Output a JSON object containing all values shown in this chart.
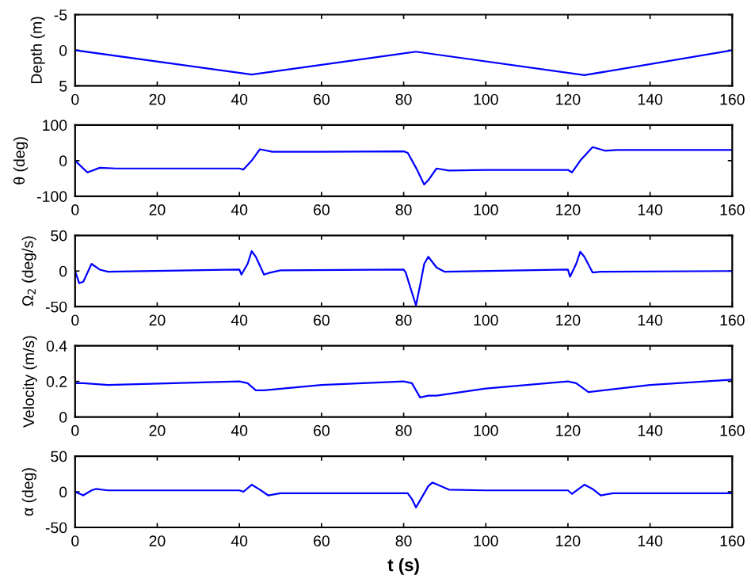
{
  "chart_data": [
    {
      "type": "line",
      "ylabel": "Depth (m)",
      "xlim": [
        0,
        160
      ],
      "xticks": [
        0,
        20,
        40,
        60,
        80,
        100,
        120,
        140,
        160
      ],
      "ylim": [
        5,
        -5
      ],
      "yticks": [
        -5,
        0,
        5
      ],
      "grid": false,
      "legend": false,
      "series": [
        {
          "color": "#0000ff",
          "x": [
            0,
            43,
            83,
            124,
            160
          ],
          "values": [
            0,
            3.4,
            0.2,
            3.5,
            0
          ]
        }
      ]
    },
    {
      "type": "line",
      "ylabel": "θ (deg)",
      "xlim": [
        0,
        160
      ],
      "xticks": [
        0,
        20,
        40,
        60,
        80,
        100,
        120,
        140,
        160
      ],
      "ylim": [
        -100,
        100
      ],
      "yticks": [
        -100,
        0,
        100
      ],
      "grid": false,
      "legend": false,
      "series": [
        {
          "color": "#0000ff",
          "x": [
            0,
            3,
            6,
            10,
            40,
            41,
            43,
            45,
            48,
            60,
            80,
            81,
            83,
            85,
            86,
            88,
            91,
            100,
            120,
            121,
            123,
            126,
            129,
            132,
            160
          ],
          "values": [
            0,
            -33,
            -20,
            -22,
            -22,
            -25,
            0,
            32,
            25,
            25,
            26,
            22,
            -20,
            -67,
            -55,
            -22,
            -28,
            -26,
            -26,
            -33,
            0,
            38,
            28,
            30,
            30
          ]
        }
      ]
    },
    {
      "type": "line",
      "ylabel": "Ω$_{2}$ (deg/s)",
      "xlim": [
        0,
        160
      ],
      "xticks": [
        0,
        20,
        40,
        60,
        80,
        100,
        120,
        140,
        160
      ],
      "ylim": [
        -50,
        50
      ],
      "yticks": [
        -50,
        0,
        50
      ],
      "grid": false,
      "legend": false,
      "series": [
        {
          "color": "#0000ff",
          "x": [
            0,
            1,
            2,
            4,
            6,
            8,
            40,
            40.5,
            42,
            43,
            44,
            46,
            47,
            50,
            80,
            80.5,
            82,
            83,
            84,
            85,
            86,
            88,
            90,
            120,
            120.5,
            122,
            123,
            124,
            126,
            128,
            160
          ],
          "values": [
            0,
            -17,
            -15,
            10,
            2,
            -1,
            2,
            -5,
            10,
            28,
            20,
            -5,
            -3,
            1,
            2,
            -2,
            -30,
            -48,
            -20,
            10,
            20,
            5,
            -1,
            2,
            -8,
            10,
            27,
            20,
            -2,
            -1,
            0
          ]
        }
      ]
    },
    {
      "type": "line",
      "ylabel": "Velocity (m/s)",
      "xlim": [
        0,
        160
      ],
      "xticks": [
        0,
        20,
        40,
        60,
        80,
        100,
        120,
        140,
        160
      ],
      "ylim": [
        0,
        0.4
      ],
      "yticks": [
        0,
        0.2,
        0.4
      ],
      "grid": false,
      "legend": false,
      "series": [
        {
          "color": "#0000ff",
          "x": [
            0,
            2,
            8,
            40,
            42,
            44,
            46,
            60,
            80,
            82,
            84,
            86,
            88,
            100,
            120,
            122,
            125,
            140,
            160
          ],
          "values": [
            0.19,
            0.19,
            0.18,
            0.2,
            0.19,
            0.15,
            0.15,
            0.18,
            0.2,
            0.19,
            0.11,
            0.12,
            0.12,
            0.16,
            0.2,
            0.19,
            0.14,
            0.18,
            0.21
          ]
        }
      ]
    },
    {
      "type": "line",
      "ylabel": "α (deg)",
      "xlabel": "t (s)",
      "xlim": [
        0,
        160
      ],
      "xticks": [
        0,
        20,
        40,
        60,
        80,
        100,
        120,
        140,
        160
      ],
      "ylim": [
        -50,
        50
      ],
      "yticks": [
        -50,
        0,
        50
      ],
      "grid": false,
      "legend": false,
      "series": [
        {
          "color": "#0000ff",
          "x": [
            0,
            2,
            4,
            5,
            8,
            40,
            41,
            43,
            45,
            47,
            50,
            80,
            81,
            82,
            83,
            84,
            86,
            87,
            89,
            91,
            100,
            120,
            121,
            124,
            126,
            128,
            131,
            160
          ],
          "values": [
            0,
            -5,
            2,
            4,
            2,
            2,
            0,
            10,
            3,
            -5,
            -2,
            -2,
            -2,
            -10,
            -22,
            -12,
            8,
            13,
            8,
            3,
            2,
            2,
            -3,
            10,
            4,
            -5,
            -2,
            -2
          ]
        }
      ]
    }
  ]
}
